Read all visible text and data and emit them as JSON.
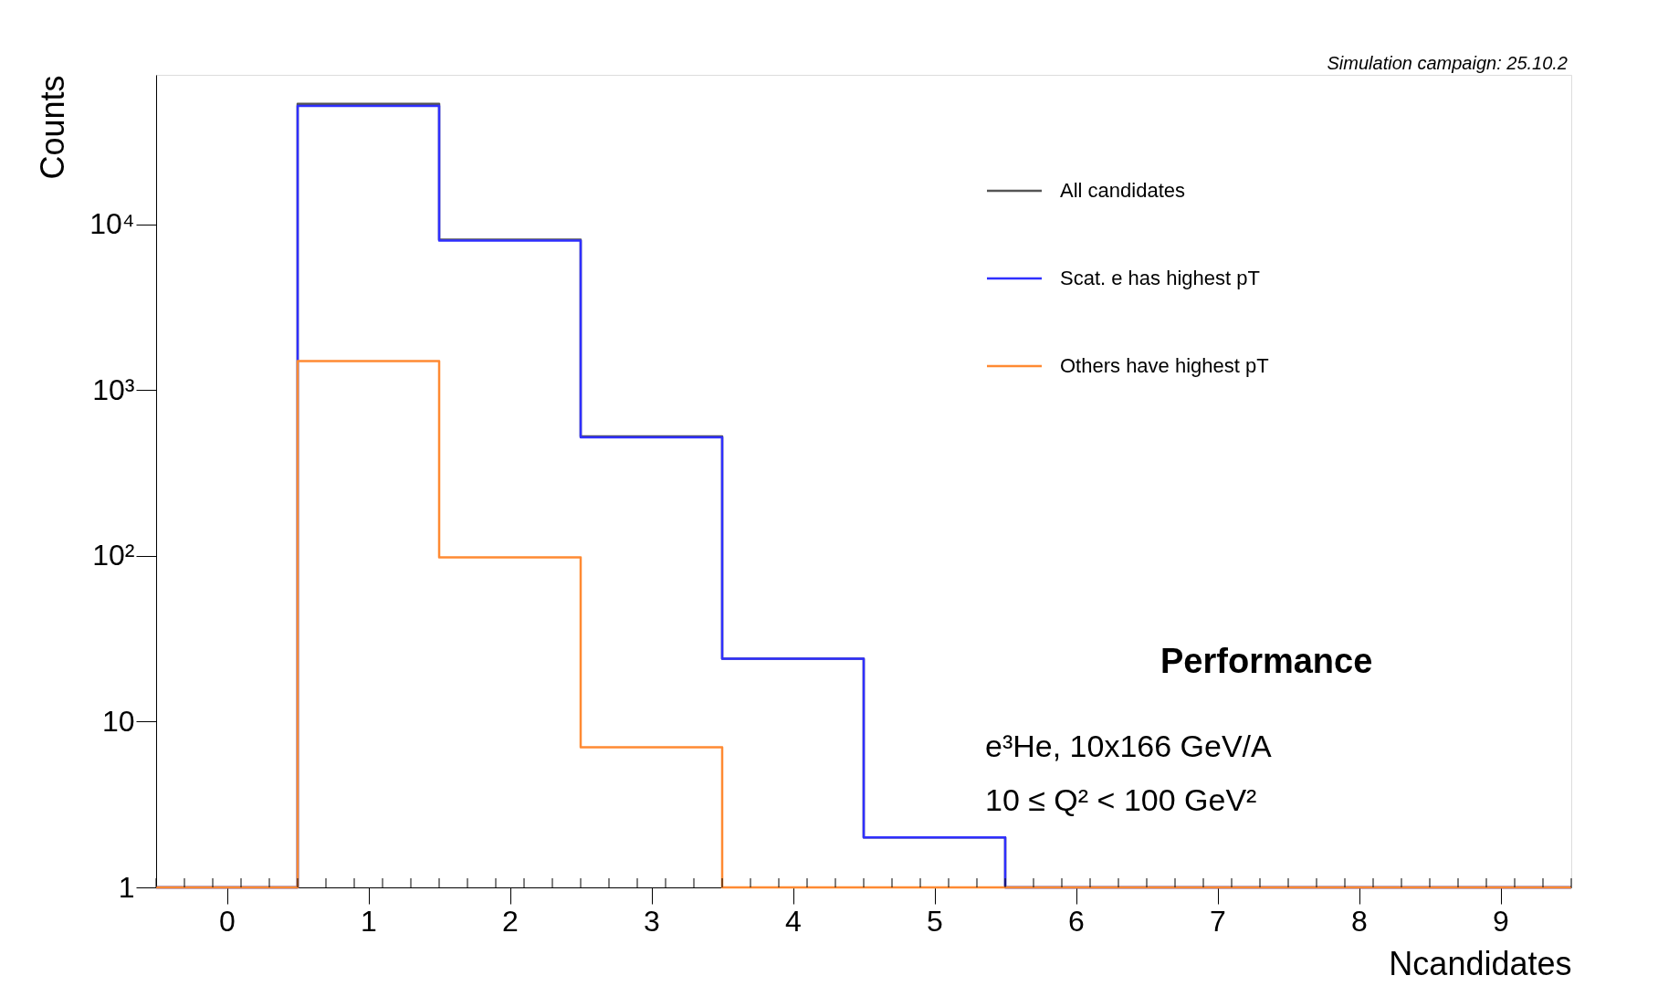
{
  "chart_data": {
    "type": "histogram",
    "ylabel": "Counts",
    "xlabel": "Ncandidates",
    "bins": [
      -0.5,
      0.5,
      1.5,
      2.5,
      3.5,
      4.5,
      5.5,
      6.5,
      7.5,
      8.5,
      9.5
    ],
    "series": [
      {
        "name": "All candidates",
        "color": "#555555",
        "values": [
          1,
          53500,
          8100,
          527,
          24,
          2,
          1,
          1,
          1,
          1
        ]
      },
      {
        "name": "Scat. e has highest pT",
        "color": "#2f2fff",
        "values": [
          1,
          52000,
          8000,
          520,
          24,
          2,
          1,
          1,
          1,
          1
        ]
      },
      {
        "name": "Others have highest pT",
        "color": "#ff8a33",
        "values": [
          1,
          1500,
          98,
          7,
          1,
          1,
          1,
          1,
          1,
          1
        ]
      }
    ],
    "xlim": [
      -0.5,
      9.5
    ],
    "xticks": [
      0,
      1,
      2,
      3,
      4,
      5,
      6,
      7,
      8,
      9
    ],
    "ylim": [
      1,
      80000
    ],
    "yticks": [
      1,
      10,
      {
        "value": 100,
        "label": "10²"
      },
      {
        "value": 1000,
        "label": "10³"
      },
      {
        "value": 10000,
        "label": "10⁴"
      }
    ],
    "log": "y",
    "grid": false,
    "legend": "top right",
    "annotations": [
      "Simulation campaign: 25.10.2",
      "Performance",
      "e³He, 10x166 GeV/A",
      "10 ≤ Q² < 100 GeV²"
    ]
  }
}
